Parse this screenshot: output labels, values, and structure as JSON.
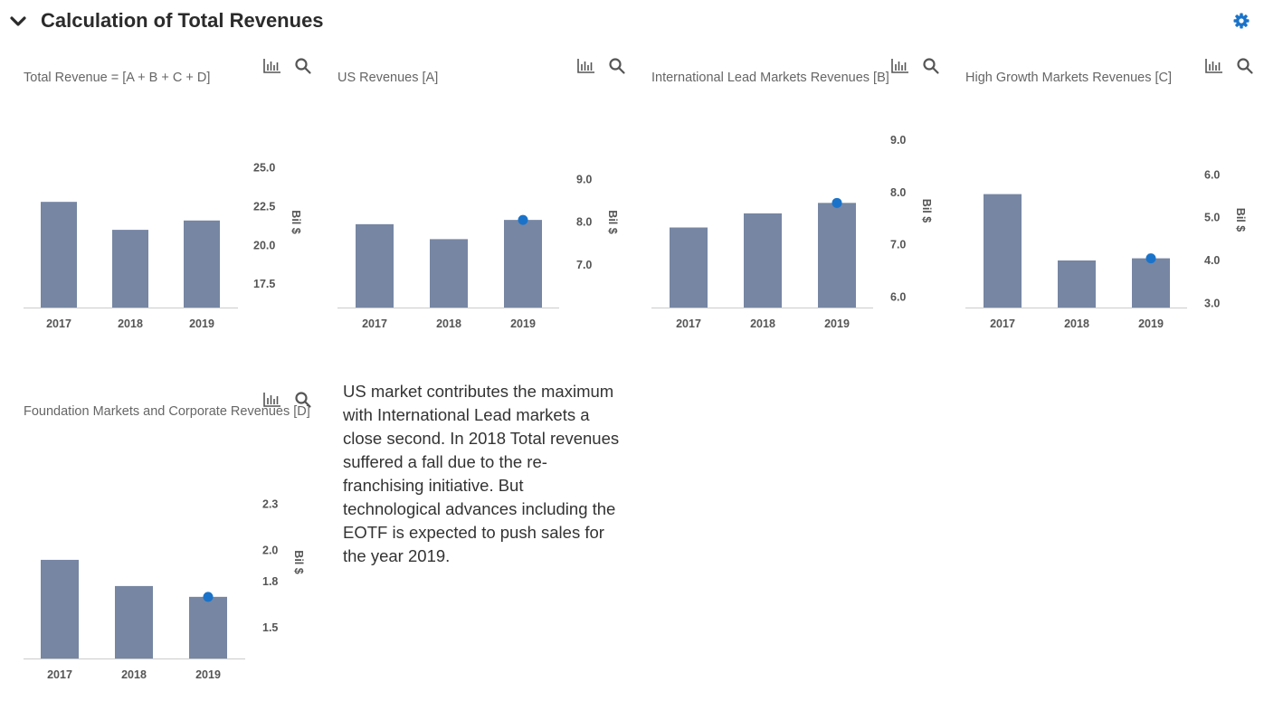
{
  "header": {
    "title": "Calculation of Total Revenues",
    "collapse_icon": "chevron-down-icon",
    "settings_icon": "gear-icon",
    "accent_color": "#1a73c9"
  },
  "toolbar": {
    "chart_icon": "bar-chart-icon",
    "search_icon": "search-icon"
  },
  "commentary": "US market contributes the maximum with International Lead markets a close second. In 2018 Total revenues suffered a fall due to the re-franchising initiative. But technological advances including the EOTF is expected to push sales for the year 2019.",
  "colors": {
    "bar": "#7686a3",
    "marker": "#1a73c9",
    "axis_text": "#555555"
  },
  "chart_data": [
    {
      "id": "total",
      "type": "bar",
      "title": "Total Revenue = [A + B + C + D]",
      "categories": [
        "2017",
        "2018",
        "2019"
      ],
      "values": [
        22.8,
        21.0,
        21.6
      ],
      "marker_index": null,
      "ylabel": "Bil $",
      "yticks": [
        "25.0",
        "22.5",
        "20.0",
        "17.5"
      ],
      "ylim": [
        16.0,
        27.0
      ]
    },
    {
      "id": "us",
      "type": "bar",
      "title": "US Revenues [A]",
      "categories": [
        "2017",
        "2018",
        "2019"
      ],
      "values": [
        7.95,
        7.6,
        8.05
      ],
      "marker_index": 2,
      "ylabel": "Bil $",
      "yticks": [
        "9.0",
        "8.0",
        "7.0"
      ],
      "ylim": [
        6.0,
        10.0
      ]
    },
    {
      "id": "intl",
      "type": "bar",
      "title": "International Lead Markets Revenues [B]",
      "categories": [
        "2017",
        "2018",
        "2019"
      ],
      "values": [
        7.33,
        7.6,
        7.8
      ],
      "marker_index": 2,
      "ylabel": "Bil $",
      "yticks": [
        "9.0",
        "8.0",
        "7.0",
        "6.0"
      ],
      "ylim": [
        5.8,
        9.5
      ]
    },
    {
      "id": "hgm",
      "type": "bar",
      "title": "High Growth Markets Revenues [C]",
      "categories": [
        "2017",
        "2018",
        "2019"
      ],
      "values": [
        5.55,
        4.0,
        4.05
      ],
      "marker_index": 2,
      "ylabel": "Bil $",
      "yticks": [
        "6.0",
        "5.0",
        "4.0",
        "3.0"
      ],
      "ylim": [
        2.9,
        7.0
      ]
    },
    {
      "id": "found",
      "type": "bar",
      "title": "Foundation Markets and Corporate Revenues [D]",
      "categories": [
        "2017",
        "2018",
        "2019"
      ],
      "values": [
        1.94,
        1.77,
        1.7
      ],
      "marker_index": 2,
      "ylabel": "Bil $",
      "yticks": [
        "2.3",
        "2.0",
        "1.8",
        "1.5"
      ],
      "ylim": [
        1.3,
        2.55
      ]
    }
  ]
}
